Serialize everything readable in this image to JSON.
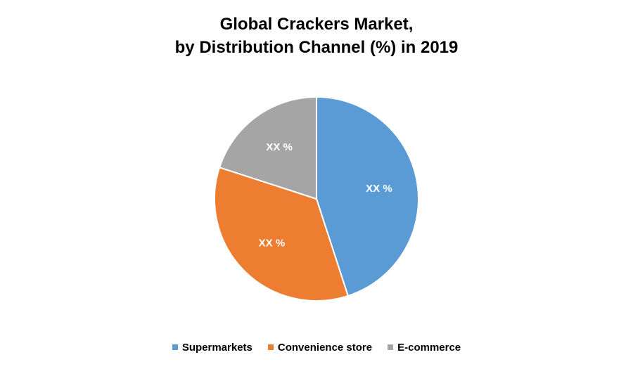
{
  "chart_data": {
    "type": "pie",
    "title": [
      "Global Crackers Market,",
      "by Distribution Channel (%) in 2019"
    ],
    "slices": [
      {
        "name": "Supermarkets",
        "value": 45,
        "label": "XX %",
        "color": "#5B9BD5"
      },
      {
        "name": "Convenience store",
        "value": 35,
        "label": "XX %",
        "color": "#ED7D31"
      },
      {
        "name": "E-commerce",
        "value": 20,
        "label": "XX %",
        "color": "#A5A5A5"
      }
    ],
    "legend_position": "bottom"
  }
}
